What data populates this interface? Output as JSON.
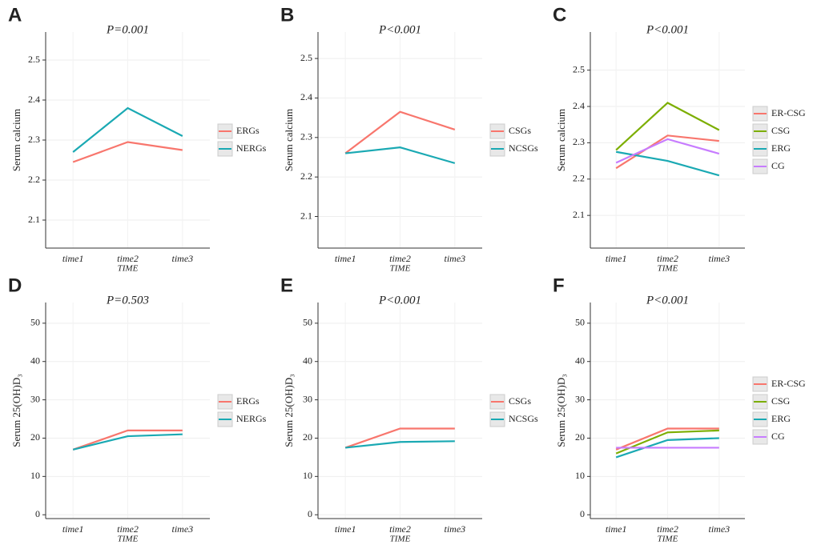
{
  "chart_data": [
    {
      "type": "line",
      "panel": "A",
      "title": "P=0.001",
      "ylabel": "Serum calcium",
      "xlabel": "TIME",
      "categories": [
        "time1",
        "time2",
        "time3"
      ],
      "ylim": [
        2.03,
        2.57
      ],
      "yticks": [
        2.1,
        2.2,
        2.3,
        2.4,
        2.5
      ],
      "grid": true,
      "series": [
        {
          "name": "ERGs",
          "color": "#F8766D",
          "values": [
            2.245,
            2.295,
            2.275
          ]
        },
        {
          "name": "NERGs",
          "color": "#1AA9B3",
          "values": [
            2.27,
            2.38,
            2.31
          ]
        }
      ]
    },
    {
      "type": "line",
      "panel": "B",
      "title": "P<0.001",
      "ylabel": "Serum calcium",
      "xlabel": "TIME",
      "categories": [
        "time1",
        "time2",
        "time3"
      ],
      "ylim": [
        2.02,
        2.567
      ],
      "yticks": [
        2.1,
        2.2,
        2.3,
        2.4,
        2.5
      ],
      "grid": true,
      "series": [
        {
          "name": "CSGs",
          "color": "#F8766D",
          "values": [
            2.26,
            2.365,
            2.32
          ]
        },
        {
          "name": "NCSGs",
          "color": "#1AA9B3",
          "values": [
            2.26,
            2.275,
            2.235
          ]
        }
      ]
    },
    {
      "type": "line",
      "panel": "C",
      "title": "P<0.001",
      "ylabel": "Serum calcium",
      "xlabel": "TIME",
      "categories": [
        "time1",
        "time2",
        "time3"
      ],
      "ylim": [
        2.01,
        2.605
      ],
      "yticks": [
        2.1,
        2.2,
        2.3,
        2.4,
        2.5
      ],
      "grid": true,
      "series": [
        {
          "name": "ER-CSG",
          "color": "#F8766D",
          "values": [
            2.23,
            2.32,
            2.305
          ]
        },
        {
          "name": "CSG",
          "color": "#7CAE00",
          "values": [
            2.28,
            2.41,
            2.335
          ]
        },
        {
          "name": "ERG",
          "color": "#1AA9B3",
          "values": [
            2.275,
            2.25,
            2.21
          ]
        },
        {
          "name": "CG",
          "color": "#C77CFF",
          "values": [
            2.245,
            2.31,
            2.27
          ]
        }
      ]
    },
    {
      "type": "line",
      "panel": "D",
      "title": "P=0.503",
      "ylabel": "Serum 25(OH)D₃",
      "xlabel": "TIME",
      "categories": [
        "time1",
        "time2",
        "time3"
      ],
      "ylim": [
        -1,
        55.4
      ],
      "yticks": [
        0,
        10,
        20,
        30,
        40,
        50
      ],
      "grid": true,
      "series": [
        {
          "name": "ERGs",
          "color": "#F8766D",
          "values": [
            17,
            22,
            22
          ]
        },
        {
          "name": "NERGs",
          "color": "#1AA9B3",
          "values": [
            17,
            20.5,
            21
          ]
        }
      ]
    },
    {
      "type": "line",
      "panel": "E",
      "title": "P<0.001",
      "ylabel": "Serum 25(OH)D₃",
      "xlabel": "TIME",
      "categories": [
        "time1",
        "time2",
        "time3"
      ],
      "ylim": [
        -1,
        55.4
      ],
      "yticks": [
        0,
        10,
        20,
        30,
        40,
        50
      ],
      "grid": true,
      "series": [
        {
          "name": "CSGs",
          "color": "#F8766D",
          "values": [
            17.5,
            22.5,
            22.5
          ]
        },
        {
          "name": "NCSGs",
          "color": "#1AA9B3",
          "values": [
            17.5,
            19,
            19.2
          ]
        }
      ]
    },
    {
      "type": "line",
      "panel": "F",
      "title": "P<0.001",
      "ylabel": "Serum 25(OH)D₃",
      "xlabel": "TIME",
      "categories": [
        "time1",
        "time2",
        "time3"
      ],
      "ylim": [
        -1,
        55.4
      ],
      "yticks": [
        0,
        10,
        20,
        30,
        40,
        50
      ],
      "grid": true,
      "series": [
        {
          "name": "ER-CSG",
          "color": "#F8766D",
          "values": [
            17,
            22.5,
            22.5
          ]
        },
        {
          "name": "CSG",
          "color": "#7CAE00",
          "values": [
            16,
            21.5,
            22
          ]
        },
        {
          "name": "ERG",
          "color": "#1AA9B3",
          "values": [
            15,
            19.5,
            20
          ]
        },
        {
          "name": "CG",
          "color": "#C77CFF",
          "values": [
            17.5,
            17.5,
            17.5
          ]
        }
      ]
    }
  ]
}
